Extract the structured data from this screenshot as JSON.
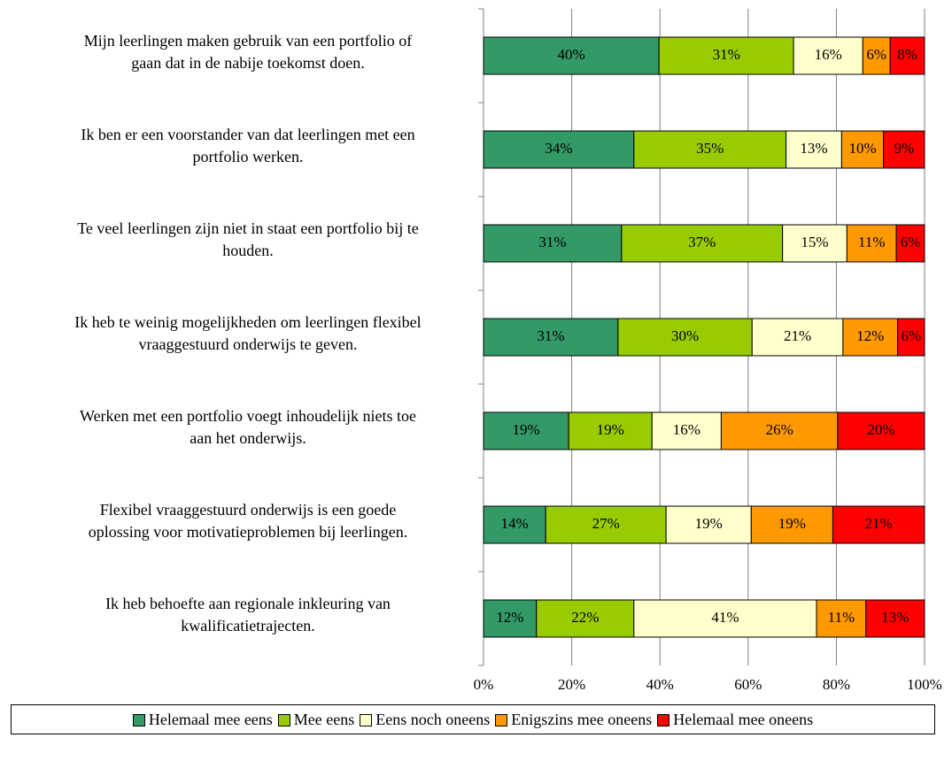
{
  "chart_data": {
    "type": "stacked_barh",
    "categories": [
      "Mijn leerlingen maken gebruik van een portfolio of\ngaan dat in de nabije toekomst doen.",
      "Ik ben er een voorstander van dat leerlingen met een\nportfolio werken.",
      "Te veel leerlingen zijn niet in staat een portfolio bij te\nhouden.",
      "Ik heb te weinig mogelijkheden om leerlingen flexibel\nvraaggestuurd onderwijs te geven.",
      "Werken met een portfolio voegt inhoudelijk niets toe\naan het onderwijs.",
      "Flexibel vraaggestuurd onderwijs is een goede\noplossing voor motivatieproblemen bij leerlingen.",
      "Ik heb behoefte aan regionale inkleuring van\nkwalificatietrajecten."
    ],
    "series": [
      {
        "name": "Helemaal mee eens",
        "color": "#339966",
        "values": [
          39.8,
          34.1,
          31.3,
          30.5,
          19.3,
          14.1,
          12.0
        ],
        "value_labels": [
          "40%",
          "34%",
          "31%",
          "31%",
          "19%",
          "14%",
          "12%"
        ]
      },
      {
        "name": "Mee eens",
        "color": "#99cc00",
        "values": [
          30.5,
          34.5,
          36.5,
          30.4,
          18.9,
          27.3,
          22.1
        ],
        "value_labels": [
          "31%",
          "35%",
          "37%",
          "30%",
          "19%",
          "27%",
          "22%"
        ]
      },
      {
        "name": "Eens noch oneens",
        "color": "#ffffcc",
        "values": [
          15.7,
          12.6,
          14.6,
          20.6,
          15.7,
          19.3,
          41.4
        ],
        "value_labels": [
          "16%",
          "13%",
          "15%",
          "21%",
          "16%",
          "19%",
          "41%"
        ]
      },
      {
        "name": "Enigszins mee oneens",
        "color": "#ff9900",
        "values": [
          6.2,
          9.5,
          11.2,
          12.4,
          26.4,
          18.5,
          11.2
        ],
        "value_labels": [
          "6%",
          "10%",
          "11%",
          "12%",
          "26%",
          "19%",
          "11%"
        ]
      },
      {
        "name": "Helemaal mee oneens",
        "color": "#ff0000",
        "values": [
          7.8,
          9.3,
          6.4,
          6.1,
          19.7,
          20.8,
          13.3
        ],
        "value_labels": [
          "8%",
          "9%",
          "6%",
          "6%",
          "20%",
          "21%",
          "13%"
        ]
      }
    ],
    "xlim": [
      0,
      100
    ],
    "xticks": [
      {
        "value": 0,
        "label": "0%"
      },
      {
        "value": 20,
        "label": "20%"
      },
      {
        "value": 40,
        "label": "40%"
      },
      {
        "value": 60,
        "label": "60%"
      },
      {
        "value": 80,
        "label": "80%"
      },
      {
        "value": 100,
        "label": "100%"
      }
    ],
    "grid": true
  }
}
